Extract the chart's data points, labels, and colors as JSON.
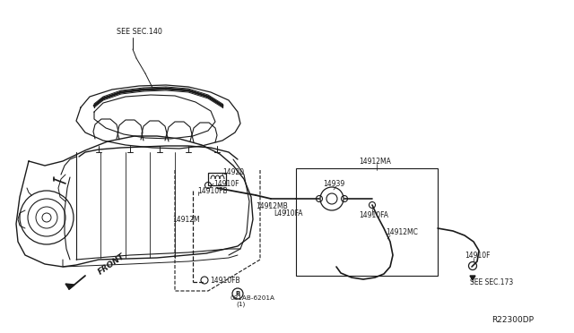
{
  "background_color": "#ffffff",
  "diagram_ref": "R22300DP",
  "line_color": "#1a1a1a",
  "text_color": "#1a1a1a",
  "labels": {
    "sec140": "SEE SEC.140",
    "sec173": "SEE SEC.173",
    "front": "FRONT",
    "p14920": "14920",
    "p14910F_top": "14910F",
    "p14910FB_top": "14910FB",
    "p14910FB_bot": "14910FB",
    "p14912M": "14912M",
    "p14912MA": "14912MA",
    "p14912MB": "14912MB",
    "p14912MC": "14912MC",
    "p14939": "14939",
    "p14910FA_top": "L4910FA",
    "p14910FA_bot": "14910FA",
    "p14910F_bot": "14910F",
    "bolt": "081AB-6201A",
    "bolt_num": "(1)"
  },
  "fig_width": 6.4,
  "fig_height": 3.72,
  "dpi": 100
}
